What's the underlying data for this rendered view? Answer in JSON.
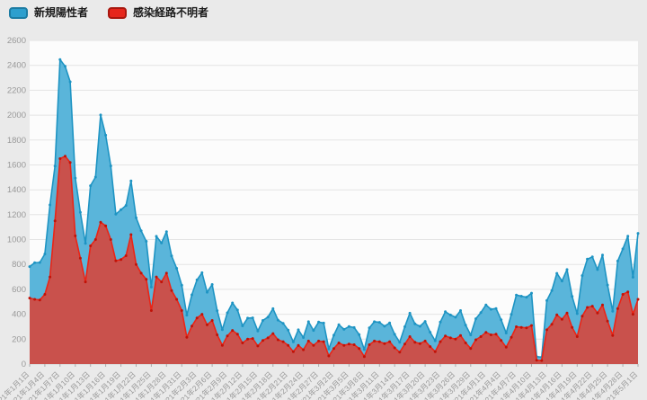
{
  "legend": {
    "series1_label": "新規陽性者",
    "series2_label": "感染経路不明者"
  },
  "colors": {
    "page_background": "#eaeaea",
    "plot_background": "#fcfcfc",
    "gridline": "#e4e4e4",
    "axis_text": "#999999",
    "blue_fill": "#5ab5da",
    "blue_stroke": "#1e94c3",
    "red_fill": "#c9514c",
    "red_stroke": "#ea2517"
  },
  "chart_data": {
    "type": "area",
    "title": "",
    "xlabel": "",
    "ylabel": "",
    "ylim": [
      0,
      2600
    ],
    "y_tick_step": 200,
    "grid": true,
    "legend_position": "top-left",
    "x_label_every": 3,
    "x_labels": [
      "'21年1月1日",
      "'21年1月4日",
      "'21年1月7日",
      "'21年1月10日",
      "'21年1月13日",
      "'21年1月16日",
      "'21年1月19日",
      "'21年1月22日",
      "'21年1月25日",
      "'21年1月28日",
      "'21年1月31日",
      "'21年2月3日",
      "'21年2月6日",
      "'21年2月9日",
      "'21年2月12日",
      "'21年2月15日",
      "'21年2月18日",
      "'21年2月21日",
      "'21年2月24日",
      "'21年2月27日",
      "'21年3月2日",
      "'21年3月5日",
      "'21年3月8日",
      "'21年3月11日",
      "'21年3月14日",
      "'21年3月17日",
      "'21年3月20日",
      "'21年3月23日",
      "'21年3月26日",
      "'21年3月29日",
      "'21年4月1日",
      "'21年4月4日",
      "'21年4月7日",
      "'21年4月10日",
      "'21年4月13日",
      "'21年4月16日",
      "'21年4月19日",
      "'21年4月22日",
      "'21年4月25日",
      "'21年4月28日",
      "'21年5月1日"
    ],
    "series": [
      {
        "name": "新規陽性者",
        "fill": "#5ab5da",
        "stroke": "#1e94c3",
        "dot": "#1e94c3",
        "legend_color": "#2d9fce",
        "legend_border": "#1c7ca3",
        "values": [
          783,
          814,
          816,
          884,
          1278,
          1591,
          2447,
          2392,
          2268,
          1494,
          1219,
          970,
          1433,
          1502,
          2001,
          1839,
          1592,
          1204,
          1240,
          1274,
          1471,
          1175,
          1070,
          986,
          618,
          1026,
          973,
          1064,
          868,
          769,
          633,
          393,
          556,
          676,
          734,
          577,
          639,
          429,
          276,
          412,
          491,
          434,
          307,
          369,
          371,
          266,
          350,
          378,
          445,
          353,
          327,
          272,
          178,
          275,
          213,
          340,
          270,
          337,
          329,
          121,
          232,
          316,
          279,
          301,
          293,
          237,
          116,
          290,
          340,
          335,
          304,
          330,
          239,
          175,
          300,
          409,
          323,
          303,
          342,
          256,
          187,
          337,
          420,
          394,
          376,
          430,
          313,
          234,
          364,
          414,
          475,
          440,
          446,
          355,
          249,
          399,
          555,
          545,
          537,
          570,
          60,
          55,
          510,
          591,
          729,
          667,
          759,
          543,
          405,
          711,
          843,
          861,
          759,
          876,
          635,
          425,
          828,
          925,
          1027,
          698,
          1050
        ]
      },
      {
        "name": "感染経路不明者",
        "fill": "#c9514c",
        "stroke": "#ea2517",
        "dot": "#c11207",
        "legend_color": "#e6261b",
        "legend_border": "#a8170e",
        "values": [
          530,
          520,
          515,
          560,
          700,
          1150,
          1650,
          1670,
          1620,
          1030,
          850,
          660,
          950,
          1000,
          1140,
          1110,
          1000,
          830,
          840,
          870,
          1040,
          800,
          730,
          680,
          430,
          700,
          660,
          730,
          590,
          520,
          430,
          215,
          305,
          370,
          400,
          315,
          350,
          235,
          150,
          225,
          270,
          240,
          170,
          200,
          205,
          145,
          190,
          210,
          245,
          195,
          180,
          150,
          100,
          150,
          115,
          185,
          150,
          185,
          180,
          65,
          125,
          170,
          150,
          160,
          155,
          125,
          60,
          155,
          185,
          180,
          165,
          180,
          130,
          95,
          160,
          220,
          175,
          165,
          185,
          140,
          100,
          180,
          225,
          210,
          200,
          230,
          170,
          125,
          195,
          220,
          255,
          235,
          240,
          190,
          135,
          215,
          300,
          295,
          290,
          310,
          30,
          28,
          275,
          320,
          395,
          360,
          410,
          295,
          220,
          385,
          455,
          465,
          410,
          475,
          345,
          230,
          445,
          560,
          580,
          400,
          520
        ]
      }
    ]
  }
}
